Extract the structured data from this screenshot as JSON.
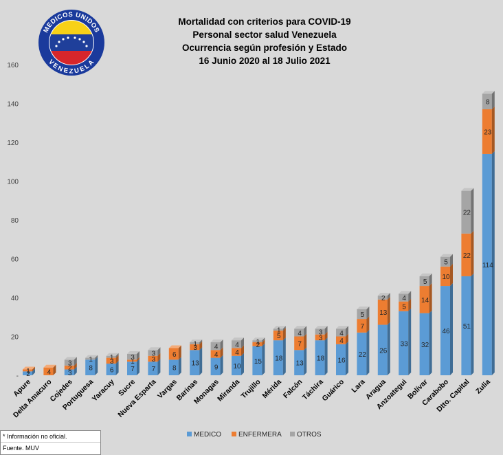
{
  "chart_data": {
    "type": "bar",
    "stacked": true,
    "title_lines": [
      "Mortalidad con criterios para COVID-19",
      "Personal sector salud Venezuela",
      "Ocurrencia según profesión y Estado",
      "16 Junio 2020 al 18 Julio 2021"
    ],
    "categories": [
      "Apure",
      "Delta Amacuro",
      "Cojedes",
      "Portuguesa",
      "Yaracuy",
      "Sucre",
      "Nueva Esparta",
      "Vargas",
      "Barinas",
      "Monagas",
      "Miranda",
      "Trujillo",
      "Mérida",
      "Falcón",
      "Táchira",
      "Guárico",
      "Lara",
      "Aragua",
      "Anzoategui",
      "Bolívar",
      "Carabobo",
      "Dtto. Capital",
      "Zulia"
    ],
    "series": [
      {
        "name": "MEDICO",
        "color": "#5b9bd5",
        "values": [
          2,
          0,
          3,
          8,
          6,
          7,
          7,
          8,
          13,
          9,
          10,
          15,
          18,
          13,
          18,
          16,
          22,
          26,
          33,
          32,
          46,
          51,
          114
        ],
        "labels": [
          "2",
          "",
          "3",
          "8",
          "6",
          "7",
          "7",
          "8",
          "13",
          "9",
          "10",
          "15",
          "18",
          "13",
          "18",
          "16",
          "22",
          "26",
          "33",
          "32",
          "46",
          "51",
          "114"
        ]
      },
      {
        "name": "ENFERMERA",
        "color": "#ed7d31",
        "values": [
          1,
          4,
          2,
          0,
          3,
          1,
          3,
          6,
          3,
          4,
          4,
          2,
          5,
          7,
          3,
          4,
          7,
          13,
          5,
          14,
          10,
          22,
          23
        ],
        "labels": [
          "1",
          "4",
          "2",
          "",
          "3",
          "1",
          "3",
          "6",
          "3",
          "4",
          "4",
          "2",
          "5",
          "7",
          "3",
          "4",
          "7",
          "13",
          "5",
          "14",
          "10",
          "22",
          "23"
        ]
      },
      {
        "name": "OTROS",
        "color": "#a5a5a5",
        "values": [
          0,
          0,
          3,
          1,
          1,
          3,
          3,
          0,
          1,
          4,
          4,
          1,
          1,
          4,
          3,
          4,
          5,
          2,
          4,
          5,
          5,
          22,
          8
        ],
        "labels": [
          "",
          "",
          "3",
          "1",
          "1",
          "3",
          "3",
          "",
          "1",
          "4",
          "4",
          "1",
          "1",
          "4",
          "3",
          "4",
          "5",
          "2",
          "4",
          "5",
          "5",
          "22",
          "8"
        ]
      }
    ],
    "yticks": [
      "-",
      "20",
      "40",
      "60",
      "80",
      "100",
      "120",
      "140",
      "160"
    ],
    "ylim": [
      0,
      160
    ],
    "legend_position": "bottom",
    "grid": false
  },
  "logo": {
    "top_text": "MEDICOS UNIDOS",
    "bottom_text": "VENEZUELA",
    "flag_colors": [
      "#f7d117",
      "#1f3f9a",
      "#d7262b"
    ],
    "ring_color": "#1a3a9c"
  },
  "notes": [
    "* Información no oficial.",
    "Fuente. MUV"
  ]
}
